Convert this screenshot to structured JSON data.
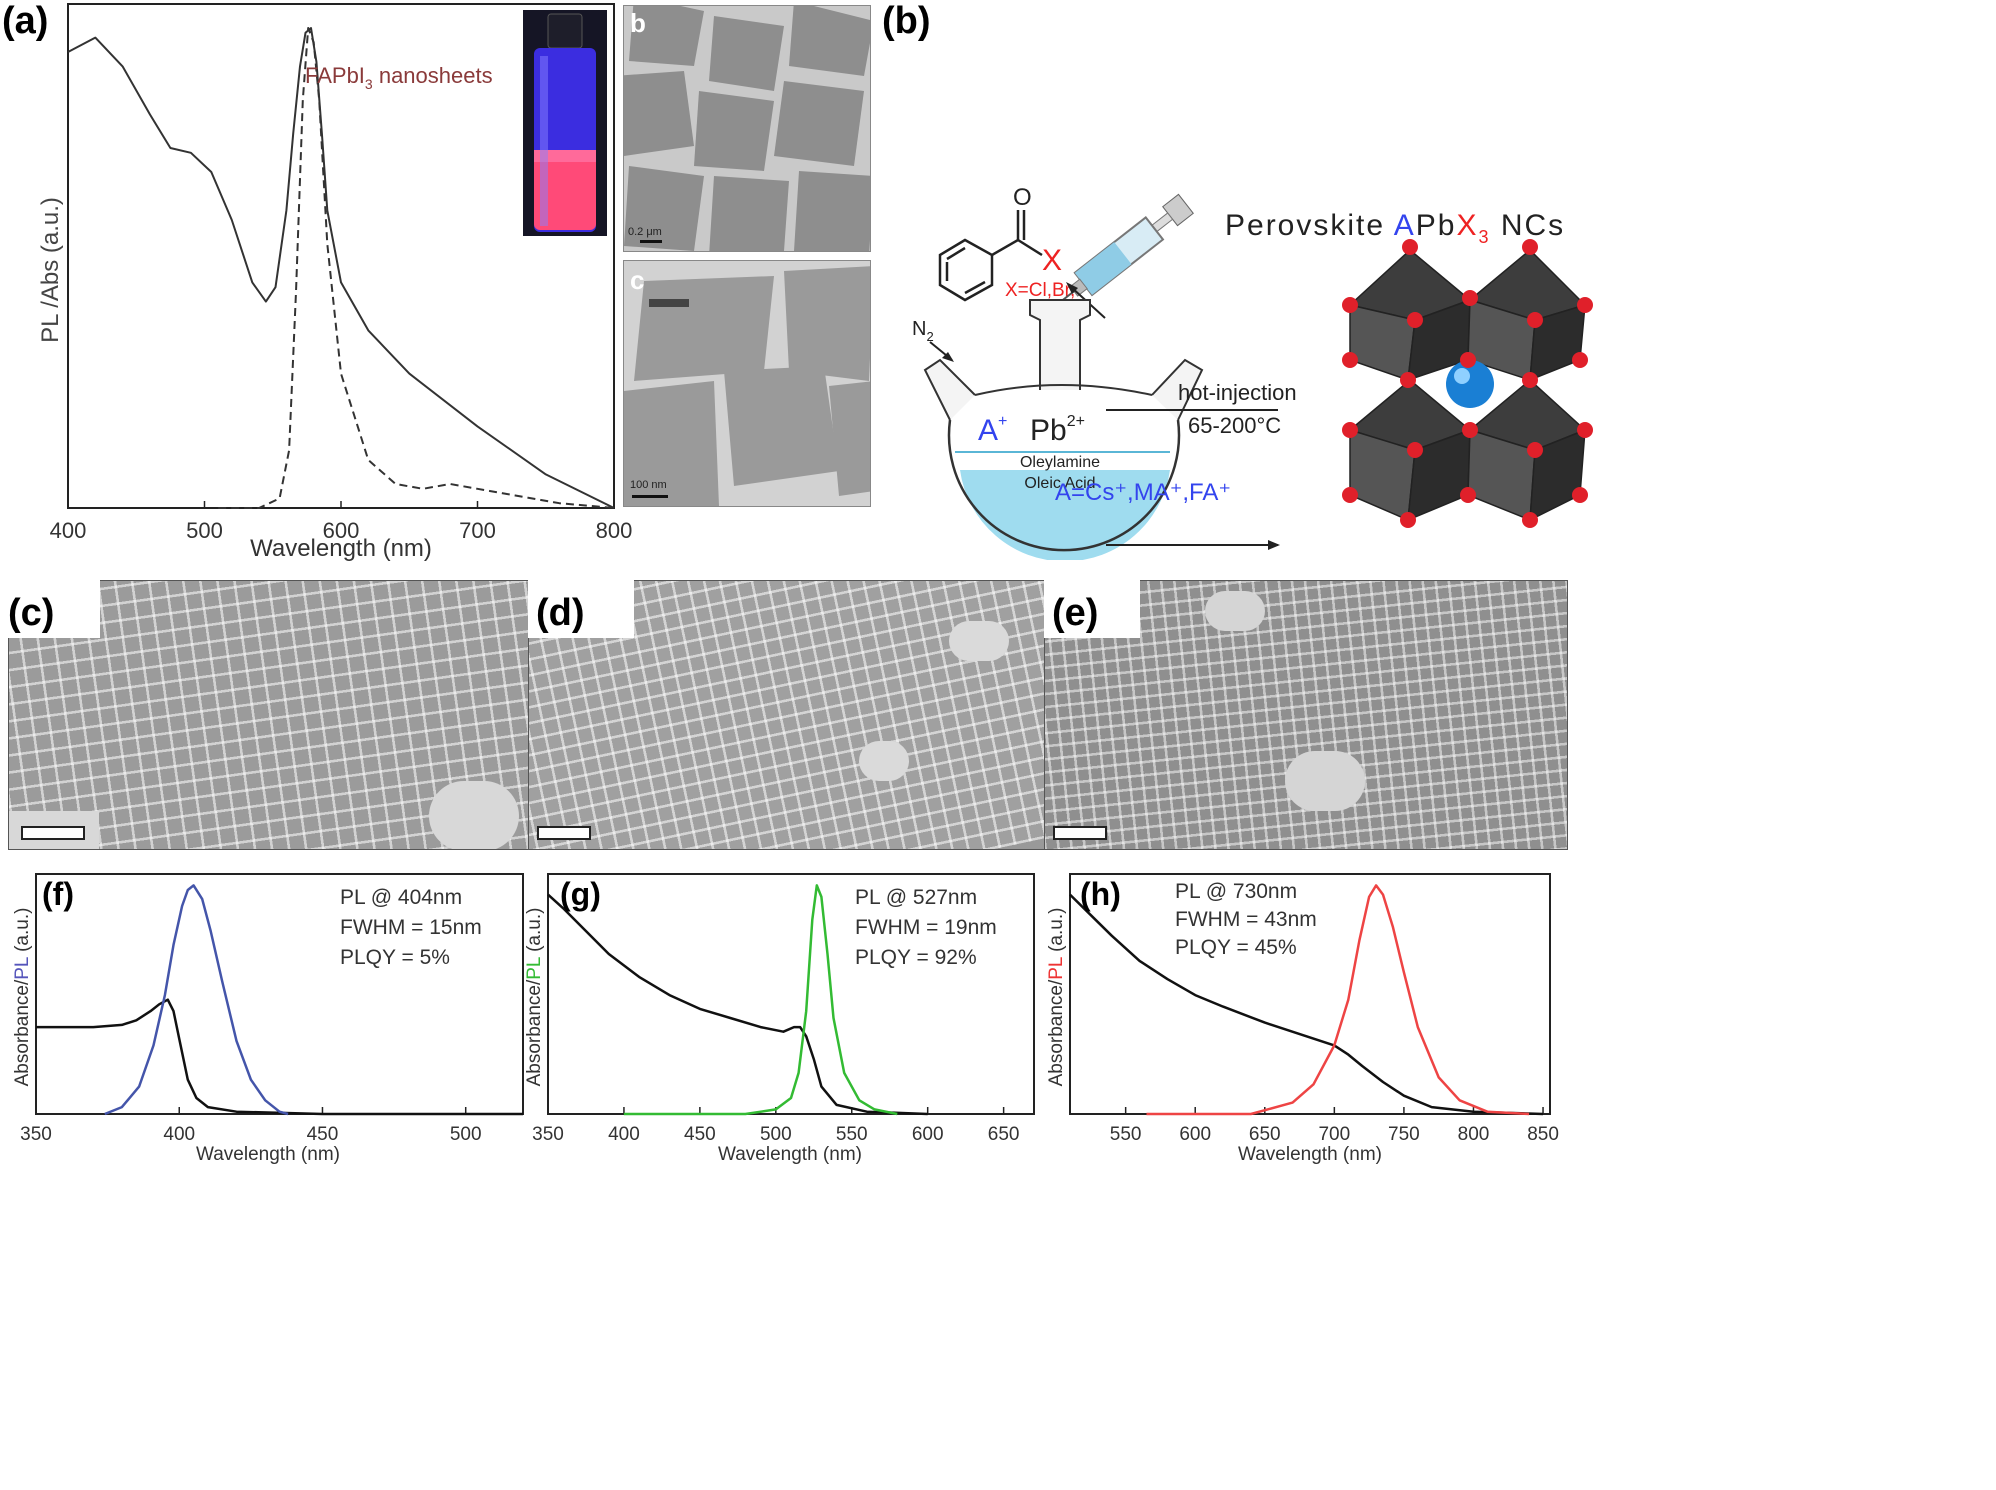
{
  "panel_labels": {
    "a": "(a)",
    "b": "(b)",
    "c": "(c)",
    "d": "(d)",
    "e": "(e)",
    "f": "(f)",
    "g": "(g)",
    "h": "(h)"
  },
  "panel_a": {
    "annotation": "FAPbI",
    "annotation_sub": "3",
    "annotation_tail": " nanosheets",
    "ylabel": "PL /Abs (a.u.)",
    "xlabel": "Wavelength (nm)",
    "inset_b_label": "b",
    "inset_c_label": "c",
    "scalebar_b": "0.2 μm",
    "scalebar_c": "100 nm"
  },
  "panel_b": {
    "title_pre": "Perovskite ",
    "title_A": "A",
    "title_Pb": "Pb",
    "title_X": "X",
    "title_sub": "3",
    "title_post": " NCs",
    "oxygen": "O",
    "halide": "X",
    "halide_options": "X=Cl,Br,I",
    "n2": "N",
    "n2_sub": "2",
    "a_ion": "A",
    "a_charge": "+",
    "pb_ion": "Pb",
    "pb_charge": "2+",
    "solvent1": "Oleylamine",
    "solvent2": "Oleic Acid",
    "cations": "A=Cs⁺,MA⁺,FA⁺",
    "method": "hot-injection",
    "temperature": "65-200°C",
    "colors": {
      "blue": "#3344ee",
      "red": "#ee2222"
    }
  },
  "panel_f": {
    "line1": "PL @ 404nm",
    "line2": "FWHM = 15nm",
    "line3": "PLQY = 5%",
    "ylabel_pre": "Absorbance/",
    "ylabel_pl": "PL",
    "ylabel_post": " (a.u.)",
    "xlabel": "Wavelength (nm)"
  },
  "panel_g": {
    "line1": "PL @ 527nm",
    "line2": "FWHM = 19nm",
    "line3": "PLQY = 92%",
    "ylabel_pre": "Absorbance/",
    "ylabel_pl": "PL",
    "ylabel_post": " (a.u.)",
    "xlabel": "Wavelength (nm)"
  },
  "panel_h": {
    "line1": "PL @ 730nm",
    "line2": "FWHM = 43nm",
    "line3": "PLQY = 45%",
    "ylabel_pre": "Absorbance/",
    "ylabel_pl": "PL",
    "ylabel_post": " (a.u.)",
    "xlabel": "Wavelength (nm)"
  },
  "chart_data": [
    {
      "id": "a",
      "type": "line",
      "xlim": [
        400,
        800
      ],
      "ylim": [
        0,
        1.05
      ],
      "xticks": [
        400,
        500,
        600,
        700,
        800
      ],
      "series": [
        {
          "style": "solid",
          "color": "#333333",
          "x": [
            400,
            420,
            440,
            460,
            475,
            490,
            505,
            520,
            535,
            545,
            552,
            560,
            565,
            570,
            574,
            578,
            582,
            586,
            590,
            600,
            620,
            650,
            700,
            750,
            800
          ],
          "y": [
            0.95,
            0.98,
            0.92,
            0.82,
            0.75,
            0.74,
            0.7,
            0.6,
            0.47,
            0.43,
            0.46,
            0.62,
            0.78,
            0.92,
            0.99,
            1.0,
            0.93,
            0.78,
            0.62,
            0.47,
            0.37,
            0.28,
            0.17,
            0.07,
            0.0
          ]
        },
        {
          "style": "dashed",
          "color": "#333333",
          "x": [
            510,
            540,
            555,
            562,
            567,
            572,
            576,
            580,
            584,
            590,
            600,
            620,
            640,
            660,
            680,
            700,
            720,
            760,
            800
          ],
          "y": [
            0,
            0,
            0.02,
            0.12,
            0.45,
            0.85,
            1.0,
            0.97,
            0.85,
            0.55,
            0.28,
            0.1,
            0.05,
            0.04,
            0.05,
            0.04,
            0.03,
            0.01,
            0
          ]
        }
      ]
    },
    {
      "id": "f",
      "type": "line",
      "xlim": [
        350,
        520
      ],
      "ylim": [
        0,
        1.05
      ],
      "xticks": [
        350,
        400,
        450,
        500
      ],
      "series": [
        {
          "name": "Absorbance",
          "color": "#111111",
          "x": [
            350,
            370,
            380,
            385,
            390,
            393,
            396,
            398,
            400,
            403,
            406,
            410,
            420,
            450,
            520
          ],
          "y": [
            0.38,
            0.38,
            0.39,
            0.41,
            0.45,
            0.48,
            0.5,
            0.45,
            0.33,
            0.15,
            0.07,
            0.03,
            0.01,
            0,
            0
          ]
        },
        {
          "name": "PL",
          "color": "#4455aa",
          "x": [
            374,
            380,
            386,
            391,
            395,
            398,
            401,
            403,
            405,
            408,
            411,
            415,
            420,
            425,
            430,
            435,
            438
          ],
          "y": [
            0,
            0.03,
            0.12,
            0.3,
            0.52,
            0.74,
            0.91,
            0.98,
            1.0,
            0.94,
            0.8,
            0.58,
            0.32,
            0.15,
            0.06,
            0.01,
            0
          ]
        }
      ]
    },
    {
      "id": "g",
      "type": "line",
      "xlim": [
        350,
        670
      ],
      "ylim": [
        0,
        1.05
      ],
      "xticks": [
        350,
        400,
        450,
        500,
        550,
        600,
        650
      ],
      "series": [
        {
          "name": "Absorbance",
          "color": "#111111",
          "x": [
            350,
            360,
            375,
            390,
            410,
            430,
            450,
            470,
            490,
            505,
            512,
            516,
            520,
            525,
            530,
            540,
            560,
            600
          ],
          "y": [
            0.96,
            0.9,
            0.8,
            0.7,
            0.6,
            0.52,
            0.46,
            0.42,
            0.38,
            0.36,
            0.38,
            0.38,
            0.34,
            0.24,
            0.12,
            0.04,
            0.01,
            0
          ]
        },
        {
          "name": "PL",
          "color": "#33bb33",
          "x": [
            400,
            480,
            500,
            510,
            515,
            520,
            524,
            527,
            530,
            534,
            538,
            545,
            555,
            565,
            580
          ],
          "y": [
            0,
            0,
            0.02,
            0.07,
            0.18,
            0.45,
            0.85,
            1.0,
            0.95,
            0.7,
            0.42,
            0.18,
            0.06,
            0.02,
            0
          ]
        }
      ]
    },
    {
      "id": "h",
      "type": "line",
      "xlim": [
        510,
        855
      ],
      "ylim": [
        0,
        1.05
      ],
      "xticks": [
        550,
        600,
        650,
        700,
        750,
        800,
        850
      ],
      "series": [
        {
          "name": "Absorbance",
          "color": "#111111",
          "x": [
            510,
            520,
            540,
            560,
            580,
            600,
            620,
            650,
            680,
            700,
            710,
            720,
            735,
            750,
            770,
            800,
            850
          ],
          "y": [
            0.96,
            0.9,
            0.78,
            0.67,
            0.59,
            0.52,
            0.47,
            0.4,
            0.34,
            0.3,
            0.26,
            0.21,
            0.14,
            0.08,
            0.03,
            0.01,
            0
          ]
        },
        {
          "name": "PL",
          "color": "#ee4444",
          "x": [
            565,
            640,
            670,
            685,
            700,
            710,
            718,
            725,
            730,
            735,
            742,
            750,
            760,
            775,
            790,
            810,
            840
          ],
          "y": [
            0,
            0,
            0.05,
            0.13,
            0.3,
            0.5,
            0.76,
            0.95,
            1.0,
            0.96,
            0.82,
            0.62,
            0.38,
            0.16,
            0.06,
            0.01,
            0
          ]
        }
      ]
    }
  ]
}
